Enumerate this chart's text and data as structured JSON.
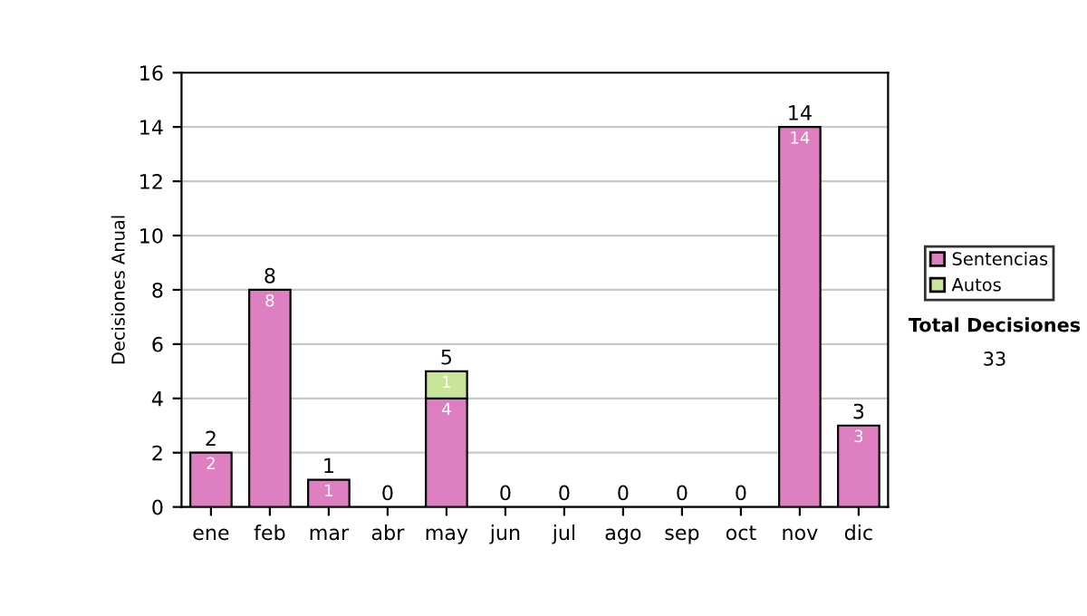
{
  "chart_data": {
    "type": "bar",
    "stacked": true,
    "ylabel": "Decisiones Anual",
    "categories": [
      "ene",
      "feb",
      "mar",
      "abr",
      "may",
      "jun",
      "jul",
      "ago",
      "sep",
      "oct",
      "nov",
      "dic"
    ],
    "series": [
      {
        "name": "Sentencias",
        "color": "#dd7fc0",
        "values": [
          2,
          8,
          1,
          0,
          4,
          0,
          0,
          0,
          0,
          0,
          14,
          3
        ],
        "value_labels": [
          "2",
          "8",
          "1",
          null,
          "4",
          null,
          null,
          null,
          null,
          null,
          "14",
          "3"
        ]
      },
      {
        "name": "Autos",
        "color": "#c9e59a",
        "values": [
          null,
          null,
          null,
          null,
          1,
          null,
          null,
          null,
          null,
          null,
          null,
          null
        ],
        "value_labels": [
          null,
          null,
          null,
          null,
          "1",
          null,
          null,
          null,
          null,
          null,
          null,
          null
        ]
      }
    ],
    "totals": [
      "2",
      "8",
      "1",
      "0",
      "5",
      "0",
      "0",
      "0",
      "0",
      "0",
      "14",
      "3"
    ],
    "ylim": [
      0,
      16
    ],
    "yticks": [
      0,
      2,
      4,
      6,
      8,
      10,
      12,
      14,
      16
    ],
    "grid": "y",
    "legend": "right",
    "annotations": [
      "Total Decisiones",
      "33"
    ]
  }
}
